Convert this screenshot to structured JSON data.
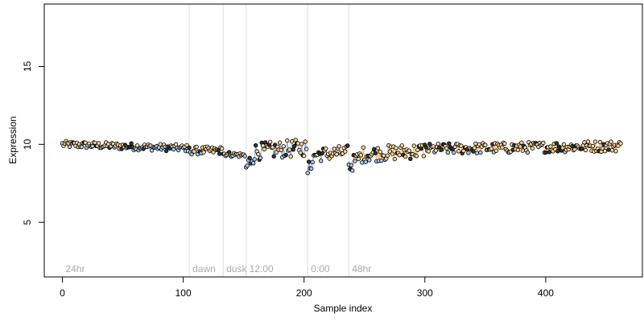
{
  "chart_data": {
    "type": "scatter",
    "title": "",
    "xlabel": "Sample index",
    "ylabel": "Expression",
    "xlim": [
      -15,
      480
    ],
    "ylim": [
      1.5,
      19
    ],
    "xticks": [
      0,
      100,
      200,
      300,
      400
    ],
    "yticks": [
      5,
      10,
      15
    ],
    "grid": false,
    "colors": {
      "point_fill_default": "#f4d29a",
      "point_fill_blue": "#a9c4ee",
      "point_fill_dark": "#333333",
      "line_blue": "#6f97de",
      "line_orange": "#efa64a",
      "divider": "#dddddd",
      "region_label": "#aaaaaa"
    },
    "regions": [
      {
        "label": "24hr",
        "x_start": 0
      },
      {
        "label": "dawn",
        "x_start": 105
      },
      {
        "label": "dusk",
        "x_start": 133
      },
      {
        "label": "12:00",
        "x_start": 152
      },
      {
        "label": "0:00",
        "x_start": 203
      },
      {
        "label": "48hr",
        "x_start": 237
      }
    ],
    "segments": [
      {
        "x_start": 0,
        "x_end": 105,
        "base": 10.0,
        "amp": 0.22,
        "trend": -0.25
      },
      {
        "x_start": 105,
        "x_end": 133,
        "base": 9.6,
        "amp": 0.25,
        "trend": 0.0
      },
      {
        "x_start": 133,
        "x_end": 152,
        "base": 9.4,
        "amp": 0.15,
        "trend": -0.1
      },
      {
        "x_start": 152,
        "x_end": 203,
        "base": 9.5,
        "amp": 0.55,
        "trend": 0.3
      },
      {
        "x_start": 203,
        "x_end": 237,
        "base": 9.3,
        "amp": 0.45,
        "trend": 0.2
      },
      {
        "x_start": 237,
        "x_end": 300,
        "base": 9.3,
        "amp": 0.5,
        "trend": 0.3
      },
      {
        "x_start": 300,
        "x_end": 463,
        "base": 9.7,
        "amp": 0.35,
        "trend": 0.2
      }
    ]
  }
}
